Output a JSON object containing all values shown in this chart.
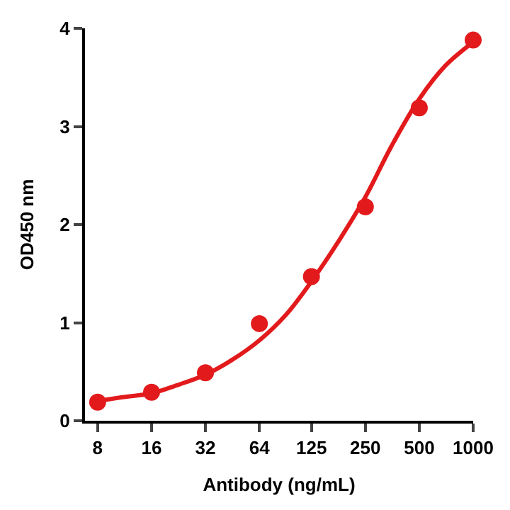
{
  "chart_data": {
    "type": "scatter",
    "xlabel": "Antibody (ng/mL)",
    "ylabel": "OD450 nm",
    "log": "x",
    "xlim": [
      6.8,
      1000
    ],
    "xticks": [
      8,
      16,
      32,
      64,
      125,
      250,
      500,
      1000
    ],
    "ylim": [
      0,
      4
    ],
    "yticks": [
      0,
      1,
      2,
      3,
      4
    ],
    "series": [
      {
        "type": "line",
        "color": "#e31a1c",
        "marker": "none",
        "x": [
          8,
          11,
          16,
          22,
          32,
          45,
          64,
          90,
          125,
          180,
          250,
          350,
          500,
          700,
          1000
        ],
        "values": [
          0.2,
          0.24,
          0.28,
          0.36,
          0.47,
          0.62,
          0.82,
          1.08,
          1.42,
          1.85,
          2.28,
          2.8,
          3.28,
          3.62,
          3.86
        ]
      },
      {
        "color": "#e31a1c",
        "marker": "circle",
        "x": [
          8,
          16,
          32,
          64,
          125,
          250,
          500,
          1000
        ],
        "values": [
          0.19,
          0.29,
          0.49,
          0.99,
          1.47,
          2.18,
          3.19,
          3.88
        ]
      }
    ]
  }
}
